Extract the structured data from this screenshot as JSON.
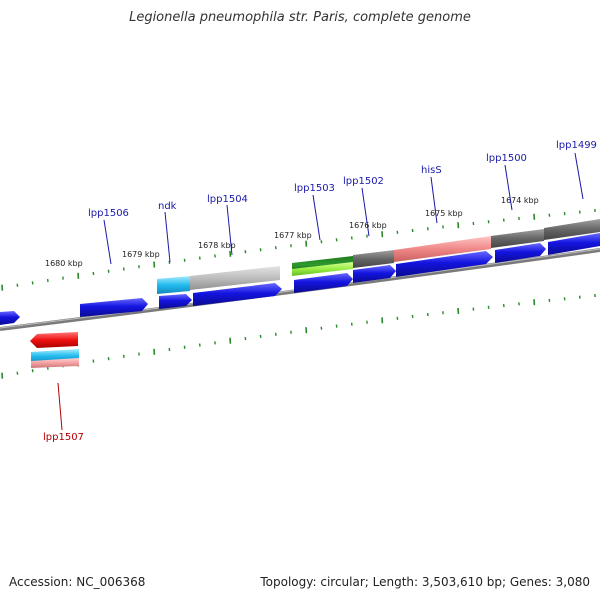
{
  "title": "Legionella pneumophila str. Paris, complete genome",
  "accession_label": "Accession: NC_006368",
  "summary_label": "Topology: circular; Length: 3,503,610 bp; Genes: 3,080",
  "colors": {
    "cds_blue": "#1010dd",
    "cyan": "#22bbee",
    "light_gray": "#b8b8b8",
    "dark_gray": "#666666",
    "salmon": "#f08888",
    "green": "#2a8a2a",
    "light_green": "#99ee44",
    "red": "#ee1111",
    "pink": "#f4a0a0",
    "tick_green": "#2a8a2a",
    "label_blue": "#1a1aaa",
    "label_red": "#b00000"
  },
  "kbp_ticks": [
    "1680 kbp",
    "1679 kbp",
    "1678 kbp",
    "1677 kbp",
    "1676 kbp",
    "1675 kbp",
    "1674 kbp"
  ],
  "gene_labels": {
    "lpp1506": "lpp1506",
    "ndk": "ndk",
    "lpp1504": "lpp1504",
    "lpp1503": "lpp1503",
    "lpp1502": "lpp1502",
    "hisS": "hisS",
    "lpp1500": "lpp1500",
    "lpp1499": "lpp1499",
    "lpp1507": "lpp1507"
  }
}
